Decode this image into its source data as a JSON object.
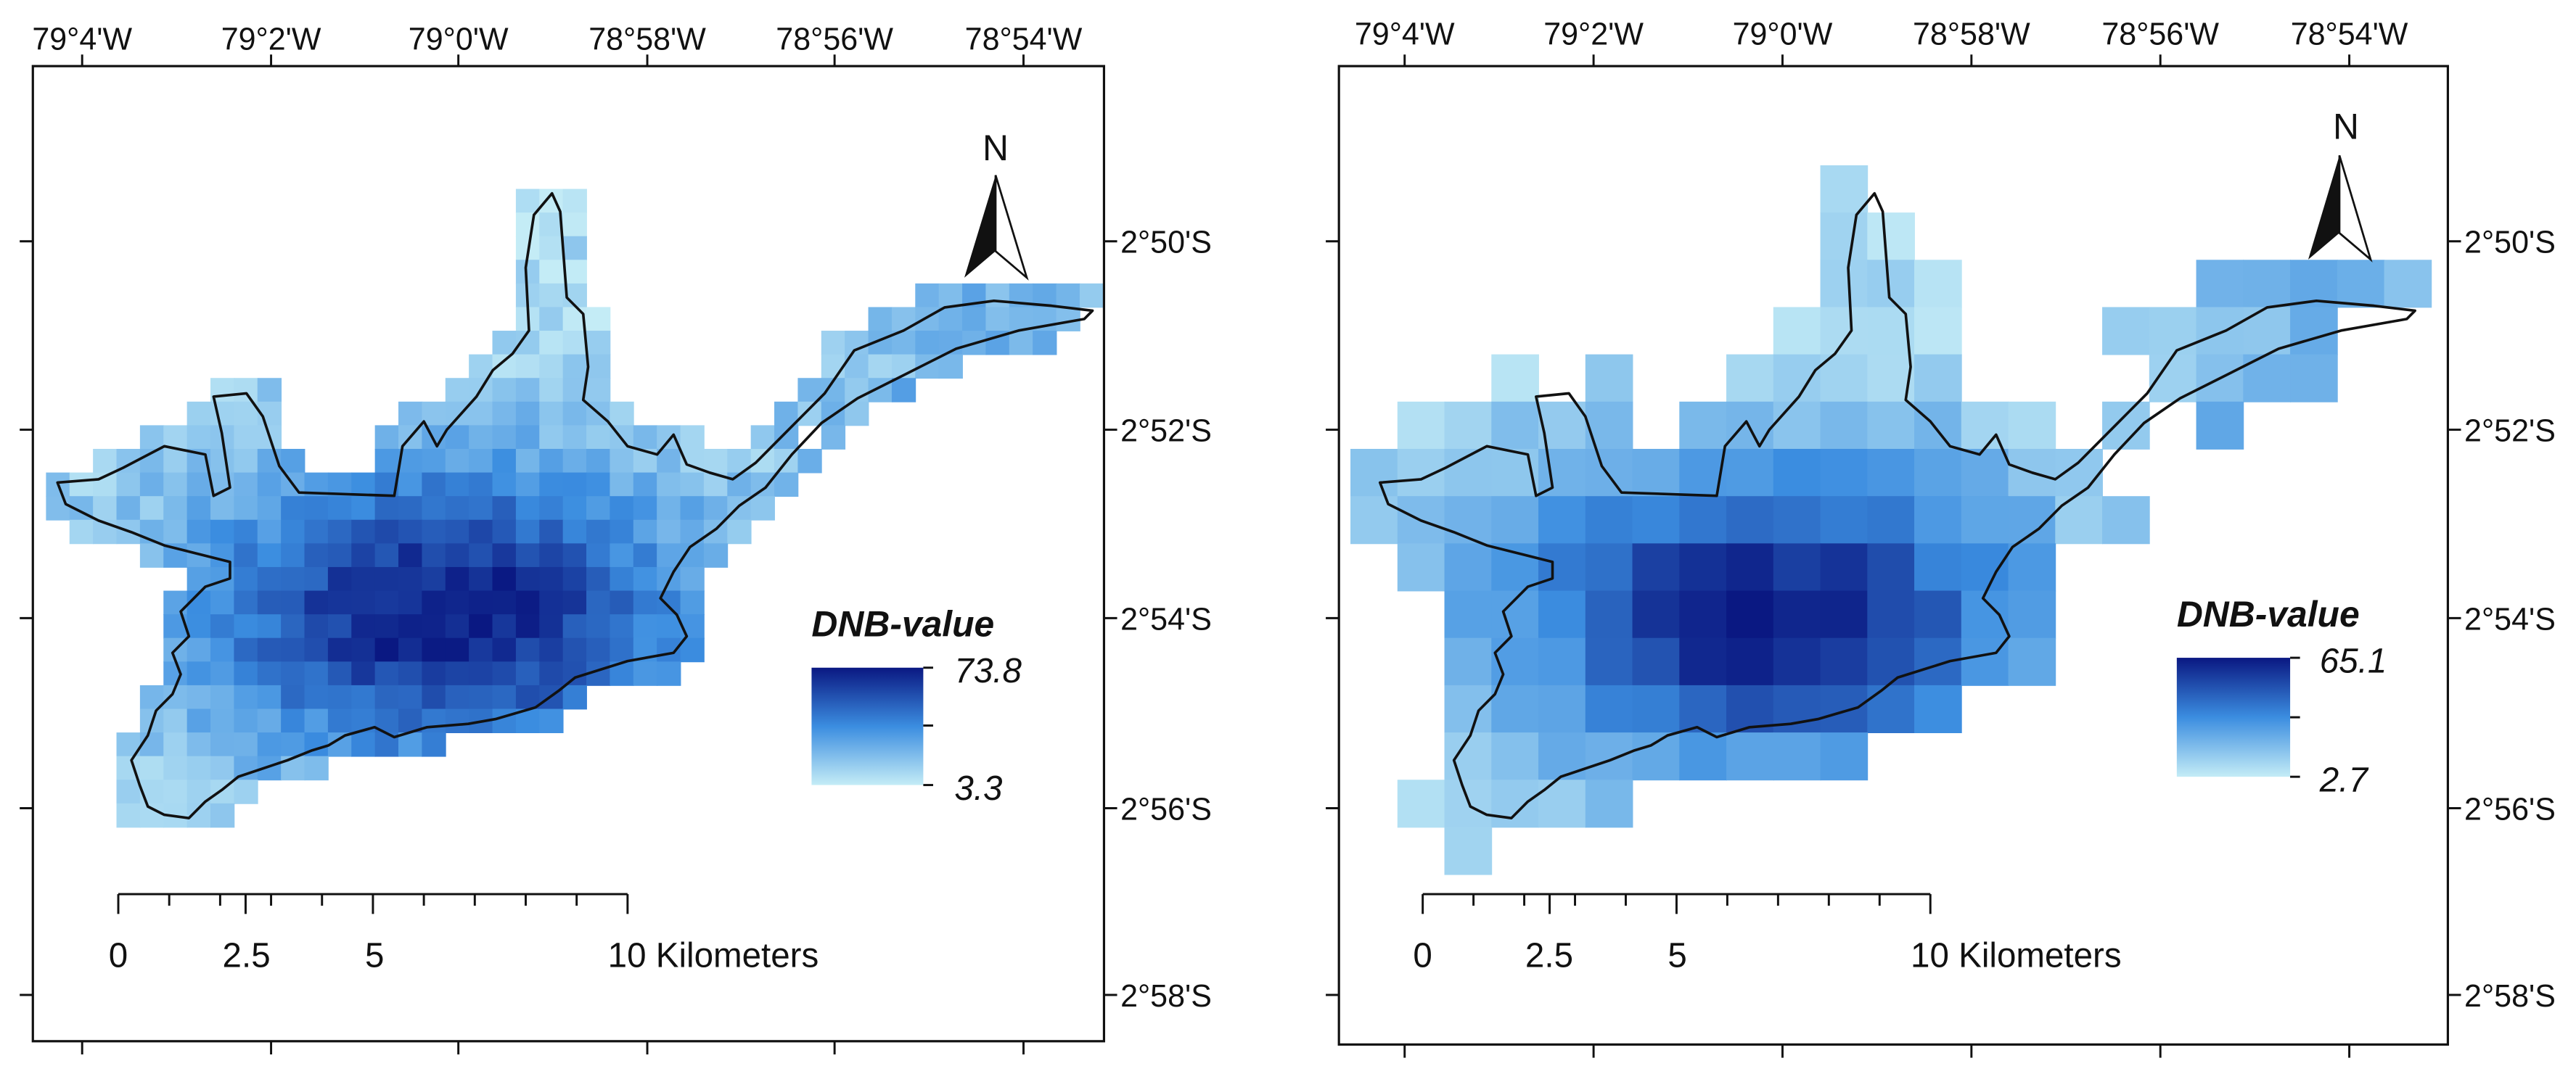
{
  "figure": {
    "longitude_labels": [
      "79°4'W",
      "79°2'W",
      "79°0'W",
      "78°58'W",
      "78°56'W",
      "78°54'W"
    ],
    "latitude_labels": [
      "2°50'S",
      "2°52'S",
      "2°54'S",
      "2°56'S",
      "2°58'S"
    ],
    "north_label": "N",
    "legend_title": "DNB-value",
    "scale": {
      "zero": "0",
      "mid1": "2.5",
      "mid2": "5",
      "end": "10 Kilometers"
    }
  },
  "panels": [
    {
      "name": "left",
      "legend_max": "73.8",
      "legend_min": "3.3",
      "max_value": 73.8,
      "min_value": 3.3
    },
    {
      "name": "right",
      "legend_max": "65.1",
      "legend_min": "2.7",
      "max_value": 65.1,
      "min_value": 2.7
    }
  ],
  "colors": {
    "low": "#c4ecf6",
    "mid": "#3b8de0",
    "high": "#0a1882",
    "outline": "#111111"
  }
}
